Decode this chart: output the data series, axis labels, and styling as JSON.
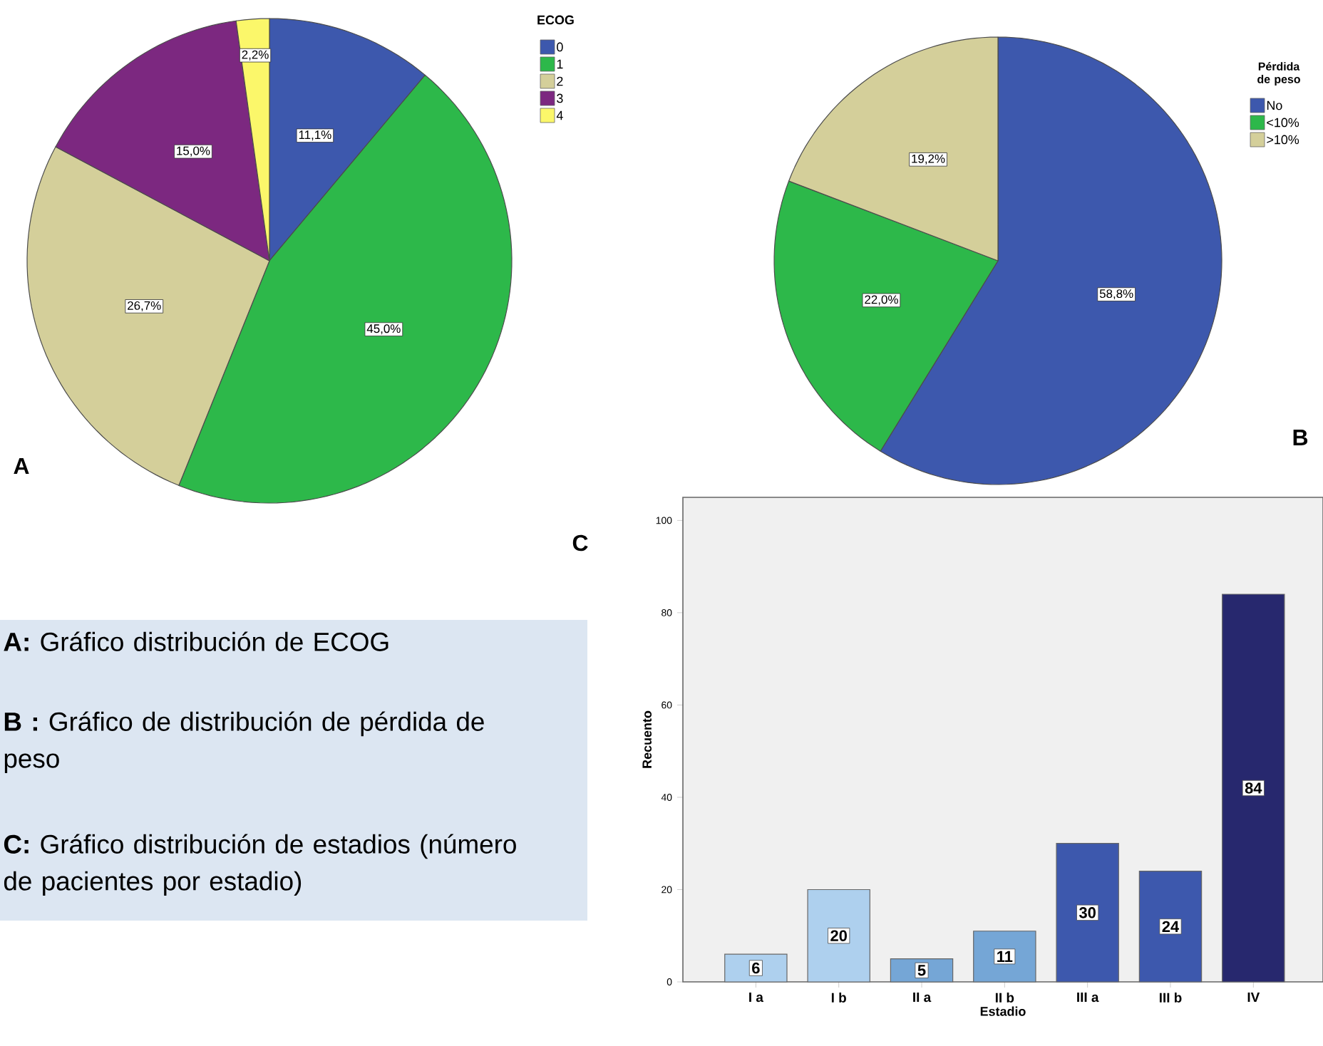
{
  "chart_data": [
    {
      "type": "pie",
      "legend_title": "ECOG",
      "categories": [
        "0",
        "1",
        "2",
        "3",
        "4"
      ],
      "values": [
        11.1,
        45.0,
        26.7,
        15.0,
        2.2
      ],
      "colors": [
        "#3d58ad",
        "#2db84a",
        "#d4cf9a",
        "#7c2880",
        "#fbf76a"
      ],
      "value_labels": [
        "11,1%",
        "45,0%",
        "26,7%",
        "15,0%",
        "2,2%"
      ],
      "legend": "top right",
      "annotations": [
        "A"
      ]
    },
    {
      "type": "pie",
      "legend_title": "Pérdida de peso",
      "categories": [
        "No",
        "<10%",
        ">10%"
      ],
      "values": [
        58.8,
        22.0,
        19.2
      ],
      "colors": [
        "#3d58ad",
        "#2db84a",
        "#d4cf9a"
      ],
      "value_labels": [
        "58,8%",
        "22,0%",
        "19,2%"
      ],
      "legend": "top right",
      "annotations": [
        "B"
      ]
    },
    {
      "type": "bar",
      "categories": [
        "I a",
        "I b",
        "II a",
        "II b",
        "III a",
        "III b",
        "IV"
      ],
      "values": [
        6,
        20,
        5,
        11,
        30,
        24,
        84
      ],
      "colors": [
        "#aed0ee",
        "#aed0ee",
        "#75a6d6",
        "#75a6d6",
        "#3d58ad",
        "#3d58ad",
        "#27286e"
      ],
      "data_labels": true,
      "xlabel": "Estadio",
      "ylabel": "Recuento",
      "ylim": [
        0,
        105
      ],
      "yticks": [
        0,
        20,
        40,
        60,
        80,
        100
      ],
      "annotations": [
        "C"
      ]
    },
    {
      "type": "other",
      "annotations": [
        "**A:** Gráfico distribución de ECOG",
        "**B :** Gráfico de distribución de pérdida de peso",
        "**C:** Gráfico distribución de estadios (número de pacientes por estadio)"
      ]
    }
  ]
}
